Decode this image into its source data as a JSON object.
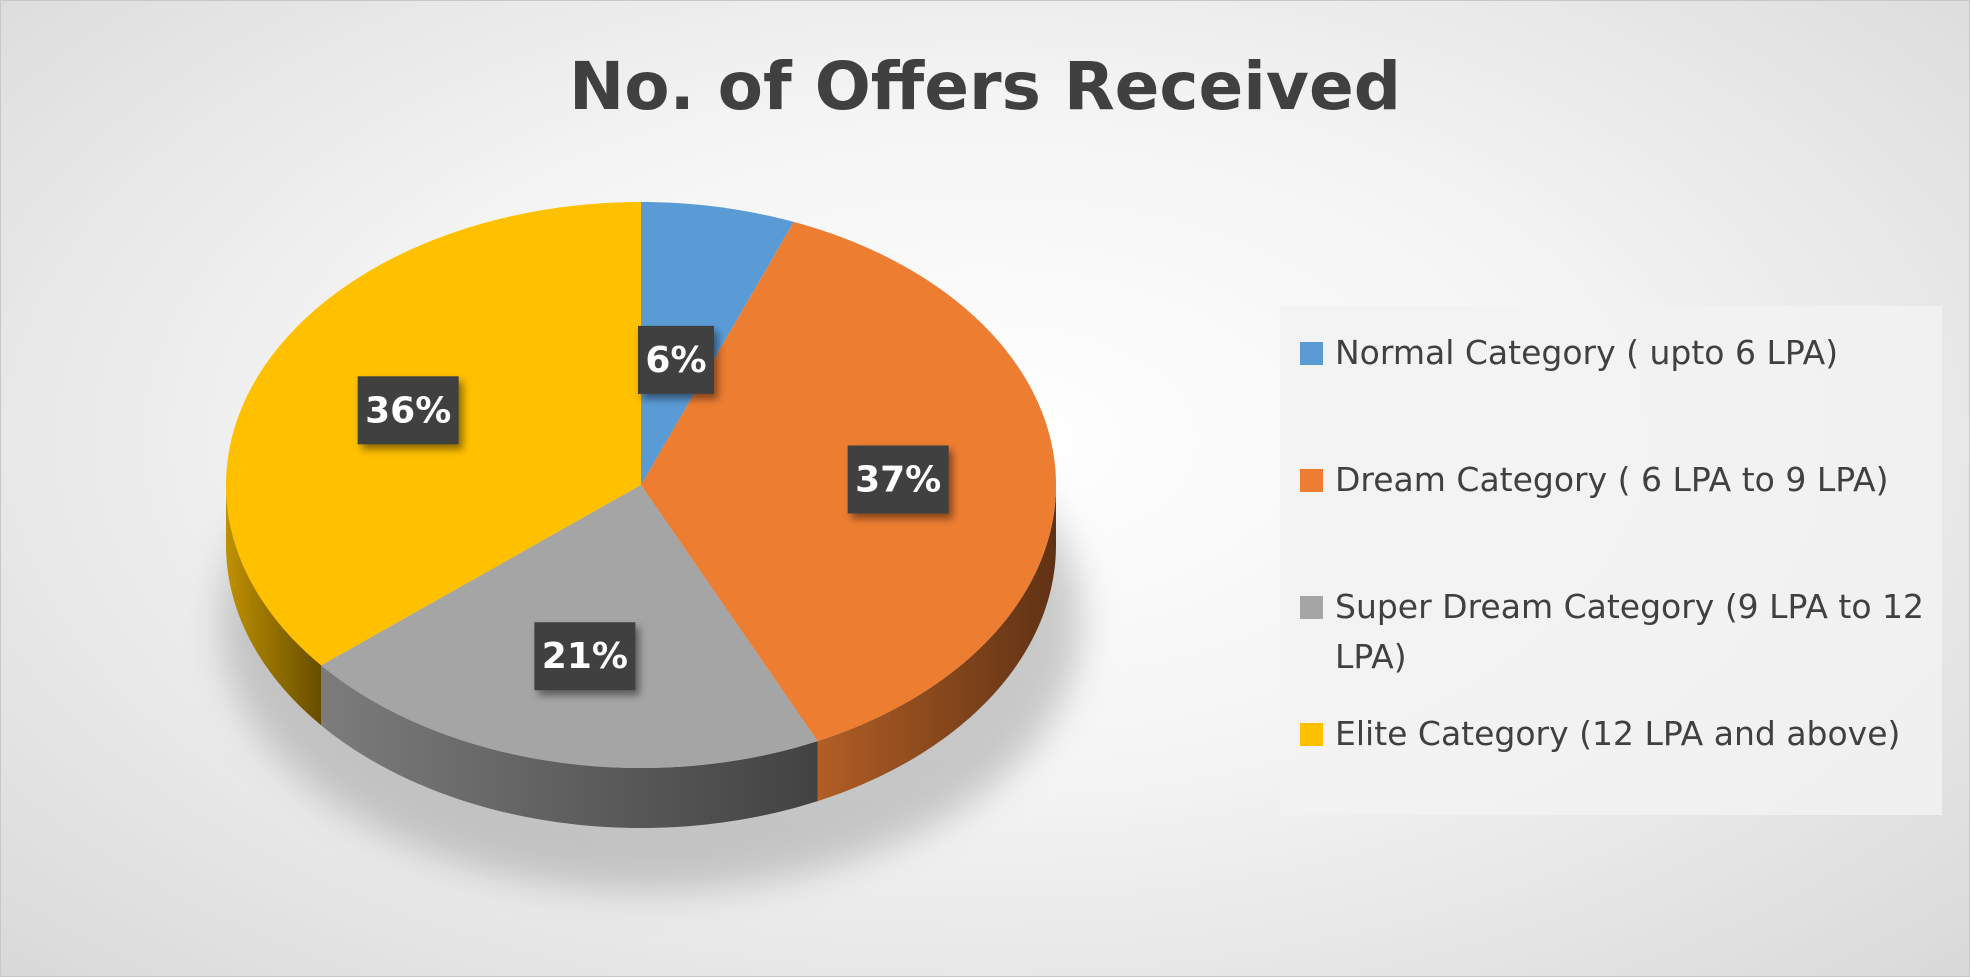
{
  "chart_data": {
    "type": "pie",
    "title": "No. of Offers Received",
    "categories": [
      "Normal Category ( upto 6 LPA)",
      "Dream Category ( 6 LPA to 9 LPA)",
      "Super Dream Category (9 LPA to 12 LPA)",
      "Elite Category (12 LPA and above)"
    ],
    "values": [
      6,
      37,
      21,
      36
    ],
    "value_labels": [
      "6%",
      "37%",
      "21%",
      "36%"
    ],
    "colors": [
      "#5b9bd5",
      "#ed7d31",
      "#a5a5a5",
      "#ffc000"
    ],
    "legend": "right"
  }
}
